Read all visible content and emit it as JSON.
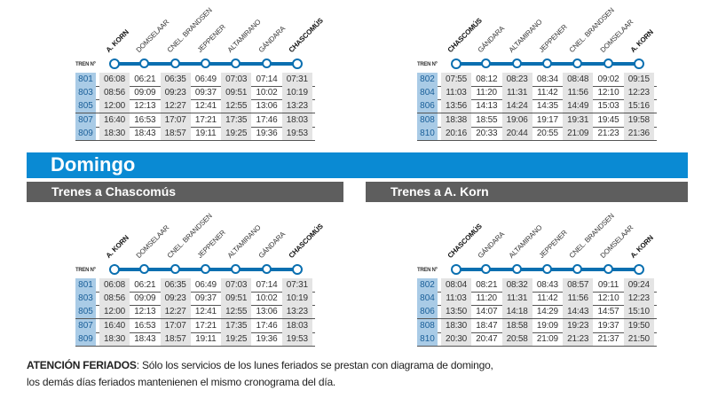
{
  "tren_label": "TREN Nº",
  "day_banner": "Domingo",
  "section_left": "Trenes a Chascomús",
  "section_right": "Trenes a A. Korn",
  "colors": {
    "accent": "#0a8ad3",
    "line": "#0a6fb0",
    "train_cell": "#a9cbe6",
    "section_bar": "#5e5e5e"
  },
  "tables": [
    {
      "stations": [
        "A. KORN",
        "DOMSELAAR",
        "CNEL. BRANDSEN",
        "JEPPENER",
        "ALTAMIRANO",
        "GÁNDARA",
        "CHASCOMÚS"
      ],
      "rows": [
        {
          "train": "801",
          "times": [
            "06:08",
            "06:21",
            "06:35",
            "06:49",
            "07:03",
            "07:14",
            "07:31"
          ]
        },
        {
          "train": "803",
          "times": [
            "08:56",
            "09:09",
            "09:23",
            "09:37",
            "09:51",
            "10:02",
            "10:19"
          ]
        },
        {
          "train": "805",
          "times": [
            "12:00",
            "12:13",
            "12:27",
            "12:41",
            "12:55",
            "13:06",
            "13:23"
          ]
        },
        {
          "train": "807",
          "times": [
            "16:40",
            "16:53",
            "17:07",
            "17:21",
            "17:35",
            "17:46",
            "18:03"
          ]
        },
        {
          "train": "809",
          "times": [
            "18:30",
            "18:43",
            "18:57",
            "19:11",
            "19:25",
            "19:36",
            "19:53"
          ]
        }
      ]
    },
    {
      "stations": [
        "CHASCOMÚS",
        "GÁNDARA",
        "ALTAMIRANO",
        "JEPPENER",
        "CNEL. BRANDSEN",
        "DOMSELAAR",
        "A. KORN"
      ],
      "rows": [
        {
          "train": "802",
          "times": [
            "07:55",
            "08:12",
            "08:23",
            "08:34",
            "08:48",
            "09:02",
            "09:15"
          ]
        },
        {
          "train": "804",
          "times": [
            "11:03",
            "11:20",
            "11:31",
            "11:42",
            "11:56",
            "12:10",
            "12:23"
          ]
        },
        {
          "train": "806",
          "times": [
            "13:56",
            "14:13",
            "14:24",
            "14:35",
            "14:49",
            "15:03",
            "15:16"
          ]
        },
        {
          "train": "808",
          "times": [
            "18:38",
            "18:55",
            "19:06",
            "19:17",
            "19:31",
            "19:45",
            "19:58"
          ]
        },
        {
          "train": "810",
          "times": [
            "20:16",
            "20:33",
            "20:44",
            "20:55",
            "21:09",
            "21:23",
            "21:36"
          ]
        }
      ]
    },
    {
      "stations": [
        "A. KORN",
        "DOMSELAAR",
        "CNEL. BRANDSEN",
        "JEPPENER",
        "ALTAMIRANO",
        "GÁNDARA",
        "CHASCOMÚS"
      ],
      "rows": [
        {
          "train": "801",
          "times": [
            "06:08",
            "06:21",
            "06:35",
            "06:49",
            "07:03",
            "07:14",
            "07:31"
          ]
        },
        {
          "train": "803",
          "times": [
            "08:56",
            "09:09",
            "09:23",
            "09:37",
            "09:51",
            "10:02",
            "10:19"
          ]
        },
        {
          "train": "805",
          "times": [
            "12:00",
            "12:13",
            "12:27",
            "12:41",
            "12:55",
            "13:06",
            "13:23"
          ]
        },
        {
          "train": "807",
          "times": [
            "16:40",
            "16:53",
            "17:07",
            "17:21",
            "17:35",
            "17:46",
            "18:03"
          ]
        },
        {
          "train": "809",
          "times": [
            "18:30",
            "18:43",
            "18:57",
            "19:11",
            "19:25",
            "19:36",
            "19:53"
          ]
        }
      ]
    },
    {
      "stations": [
        "CHASCOMÚS",
        "GÁNDARA",
        "ALTAMIRANO",
        "JEPPENER",
        "CNEL. BRANDSEN",
        "DOMSELAAR",
        "A. KORN"
      ],
      "rows": [
        {
          "train": "802",
          "times": [
            "08:04",
            "08:21",
            "08:32",
            "08:43",
            "08:57",
            "09:11",
            "09:24"
          ]
        },
        {
          "train": "804",
          "times": [
            "11:03",
            "11:20",
            "11:31",
            "11:42",
            "11:56",
            "12:10",
            "12:23"
          ]
        },
        {
          "train": "806",
          "times": [
            "13:50",
            "14:07",
            "14:18",
            "14:29",
            "14:43",
            "14:57",
            "15:10"
          ]
        },
        {
          "train": "808",
          "times": [
            "18:30",
            "18:47",
            "18:58",
            "19:09",
            "19:23",
            "19:37",
            "19:50"
          ]
        },
        {
          "train": "810",
          "times": [
            "20:30",
            "20:47",
            "20:58",
            "21:09",
            "21:23",
            "21:37",
            "21:50"
          ]
        }
      ]
    }
  ],
  "notice": {
    "bold": "ATENCIÓN FERIADOS",
    "line1": ": Sólo los servicios de los lunes feriados se prestan con diagrama de domingo,",
    "line2": "los demás días feriados mantenienen el mismo cronograma del día."
  }
}
